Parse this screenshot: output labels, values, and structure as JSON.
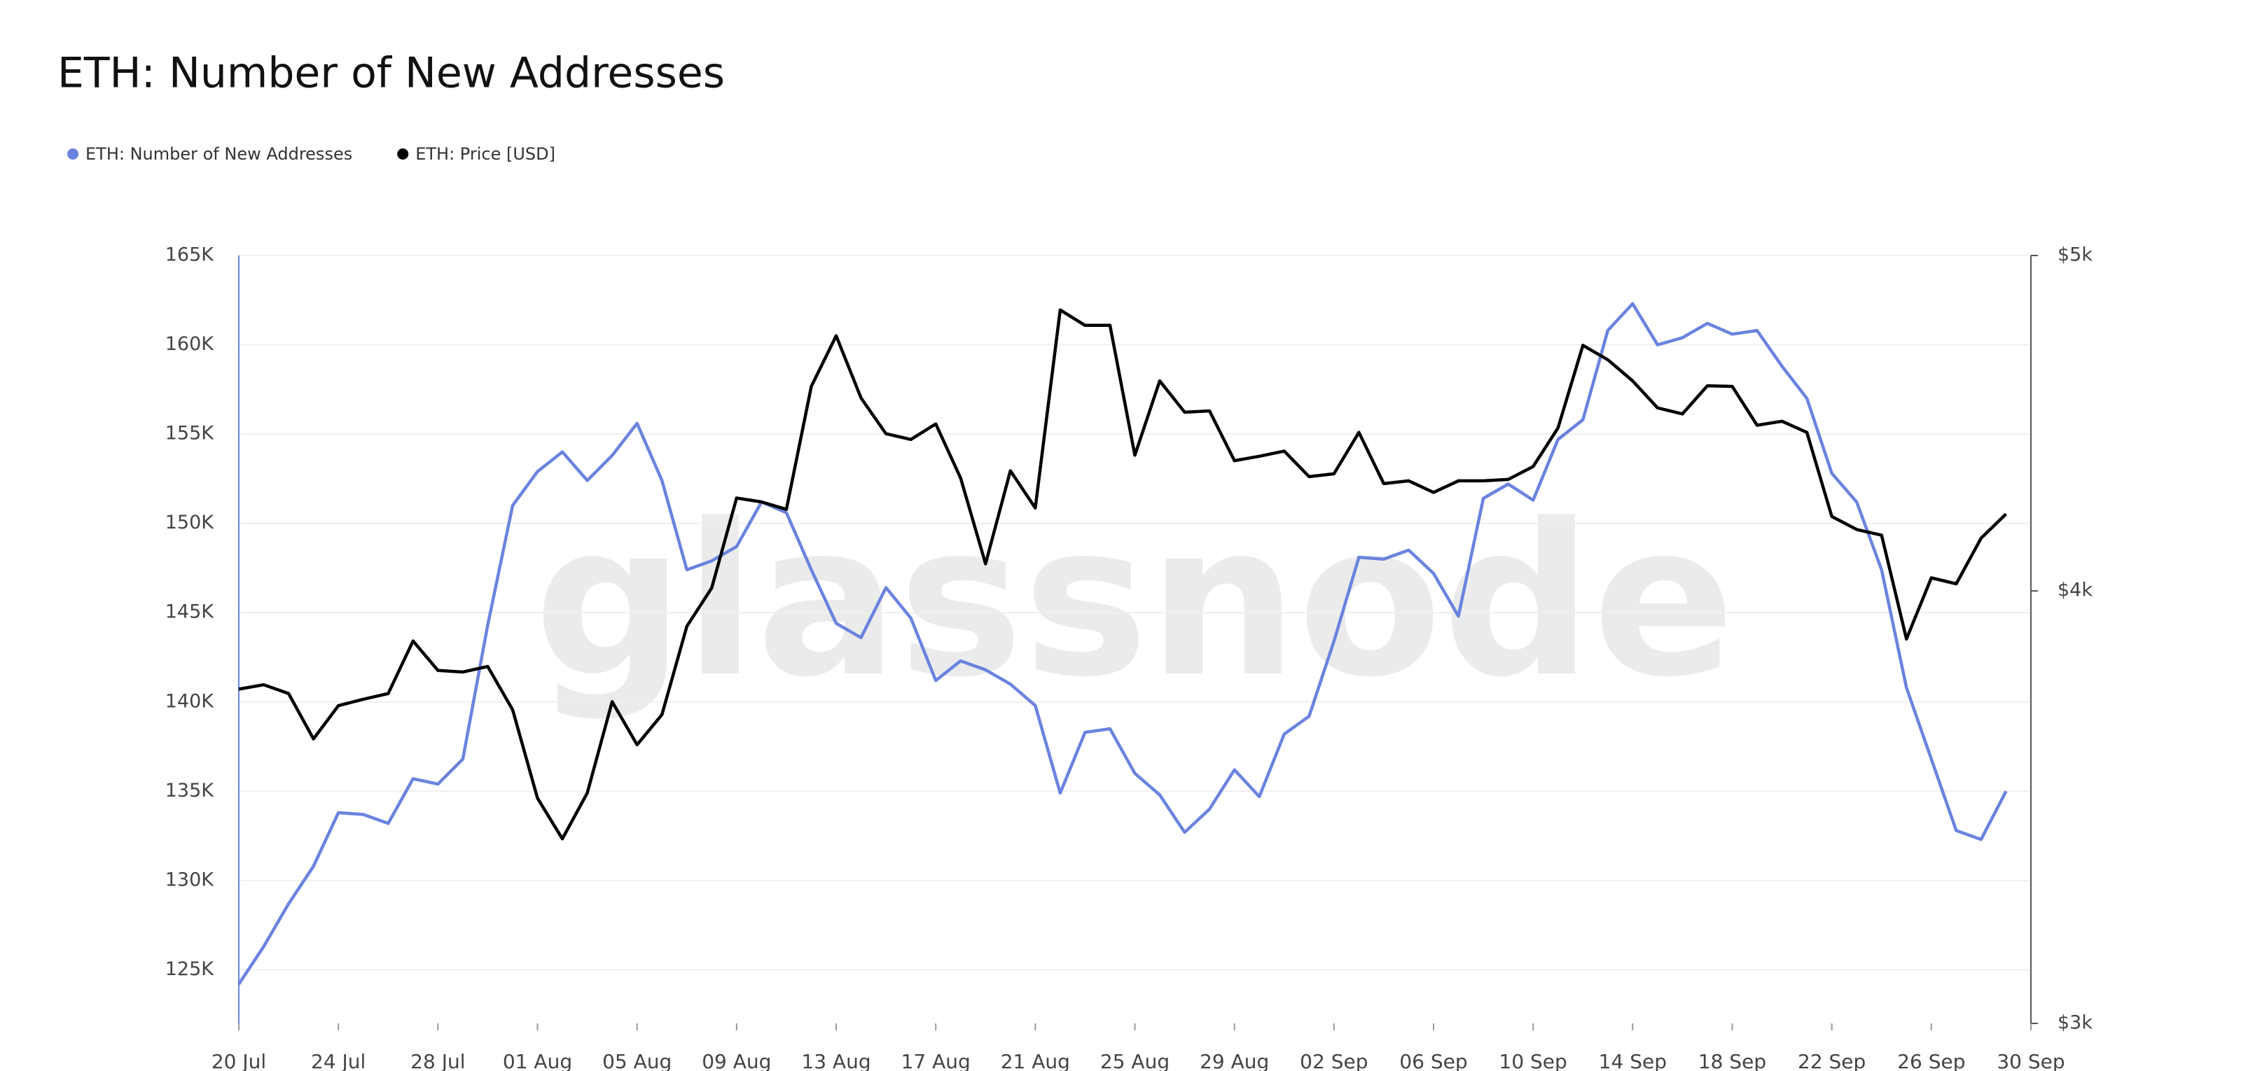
{
  "chart_data": {
    "type": "line",
    "title": "ETH: Number of New Addresses",
    "watermark": "glassnode",
    "x": [
      "20 Jul",
      null,
      null,
      null,
      "24 Jul",
      null,
      null,
      null,
      "28 Jul",
      null,
      null,
      null,
      "01 Aug",
      null,
      null,
      null,
      "05 Aug",
      null,
      null,
      null,
      "09 Aug",
      null,
      null,
      null,
      "13 Aug",
      null,
      null,
      null,
      "17 Aug",
      null,
      null,
      null,
      "21 Aug",
      null,
      null,
      null,
      "25 Aug",
      null,
      null,
      null,
      "29 Aug",
      null,
      null,
      null,
      "02 Sep",
      null,
      null,
      null,
      "06 Sep",
      null,
      null,
      null,
      "10 Sep",
      null,
      null,
      null,
      "14 Sep",
      null,
      null,
      null,
      "18 Sep",
      null,
      null,
      null,
      "22 Sep",
      null,
      null,
      null,
      "26 Sep",
      null,
      null,
      null,
      "30 Sep"
    ],
    "series": [
      {
        "name": "ETH: Number of New Addresses",
        "color": "#6a83df",
        "axis": "y",
        "values": [
          124200,
          126300,
          128700,
          130800,
          133800,
          133700,
          133200,
          135700,
          135400,
          136800,
          144300,
          151000,
          152900,
          154000,
          152400,
          153800,
          155600,
          152400,
          147400,
          147900,
          148700,
          151200,
          150600,
          147400,
          144400,
          143600,
          146400,
          144700,
          141200,
          142300,
          141800,
          141000,
          139800,
          134900,
          138300,
          138500,
          136000,
          134800,
          132700,
          134000,
          136200,
          134700,
          138200,
          139200,
          143400,
          148100,
          148000,
          148500,
          147200,
          144800,
          151400,
          152200,
          151300,
          154700,
          155800,
          160800,
          162300,
          160000,
          160400,
          161200,
          160600,
          160800,
          158800,
          157000,
          152800,
          151200,
          147400,
          140800,
          136800,
          132800,
          132300,
          135000,
          null
        ]
      },
      {
        "name": "ETH: Price [USD]",
        "color": "#000000",
        "axis": "y2",
        "values": [
          3747,
          3758,
          3736,
          3625,
          3706,
          3722,
          3736,
          3869,
          3794,
          3790,
          3804,
          3696,
          3485,
          3392,
          3497,
          3716,
          3611,
          3684,
          3907,
          4008,
          4255,
          4244,
          4223,
          4583,
          4740,
          4548,
          4441,
          4424,
          4470,
          4312,
          4073,
          4333,
          4227,
          4822,
          4773,
          4773,
          4378,
          4600,
          4505,
          4509,
          4362,
          4375,
          4390,
          4316,
          4324,
          4445,
          4296,
          4304,
          4271,
          4304,
          4304,
          4308,
          4345,
          4458,
          4710,
          4665,
          4600,
          4518,
          4500,
          4585,
          4583,
          4466,
          4478,
          4445,
          4203,
          4167,
          4151,
          3874,
          4035,
          4019,
          4143,
          4210,
          null
        ]
      }
    ],
    "ylim": [
      122000,
      165000
    ],
    "yticks": [
      {
        "value": 125000,
        "label": "125K"
      },
      {
        "value": 130000,
        "label": "130K"
      },
      {
        "value": 135000,
        "label": "135K"
      },
      {
        "value": 140000,
        "label": "140K"
      },
      {
        "value": 145000,
        "label": "145K"
      },
      {
        "value": 150000,
        "label": "150K"
      },
      {
        "value": 155000,
        "label": "155K"
      },
      {
        "value": 160000,
        "label": "160K"
      },
      {
        "value": 165000,
        "label": "165K"
      }
    ],
    "y2lim": [
      3000,
      5000
    ],
    "y2scale": "log",
    "y2ticks": [
      {
        "value": 3000,
        "label": "$3k"
      },
      {
        "value": 4000,
        "label": "$4k"
      },
      {
        "value": 5000,
        "label": "$5k"
      }
    ],
    "grid": true,
    "legend": "top-left"
  }
}
